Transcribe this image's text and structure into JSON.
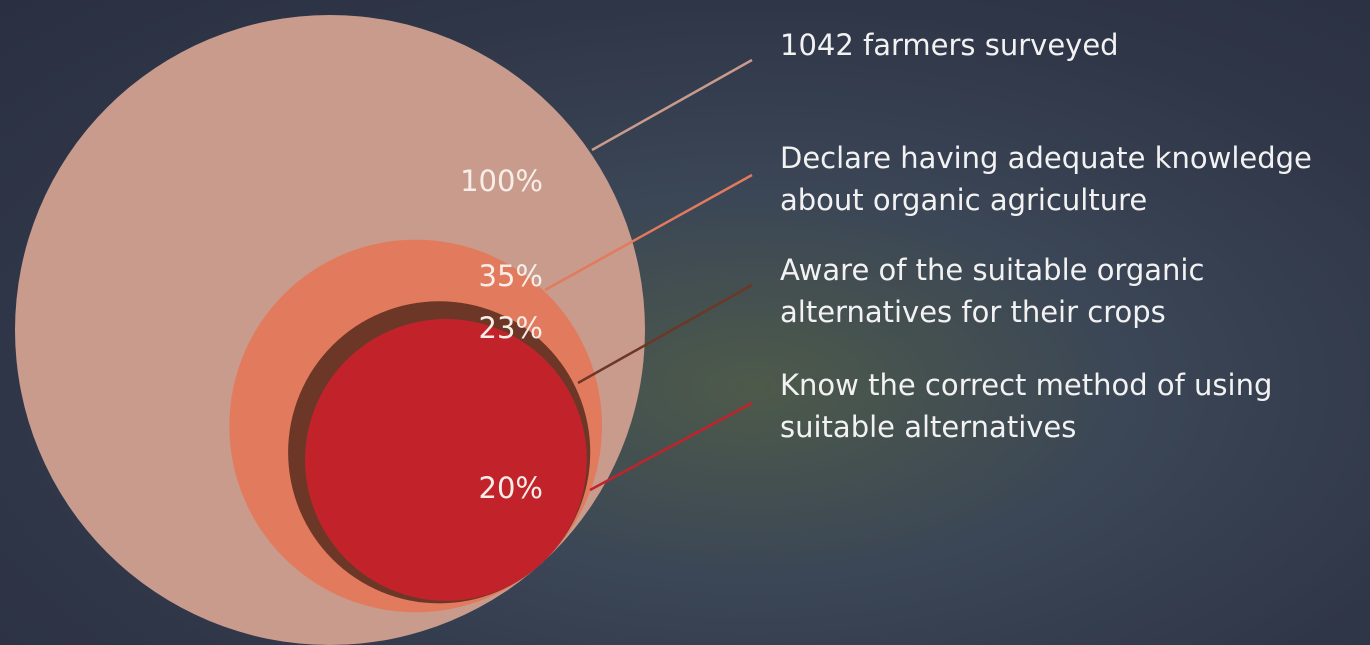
{
  "chart_data": {
    "type": "nested-circles",
    "categories": [
      "1042 farmers surveyed",
      "Declare having adequate knowledge about organic agriculture",
      "Aware of the suitable organic alternatives for their crops",
      "Know the correct method of using suitable alternatives"
    ],
    "values": [
      100,
      35,
      23,
      20
    ],
    "value_labels": [
      "100%",
      "35%",
      "23%",
      "20%"
    ],
    "colors": [
      "#c99b8d",
      "#e27b5e",
      "#6d3728",
      "#c2232b"
    ]
  }
}
